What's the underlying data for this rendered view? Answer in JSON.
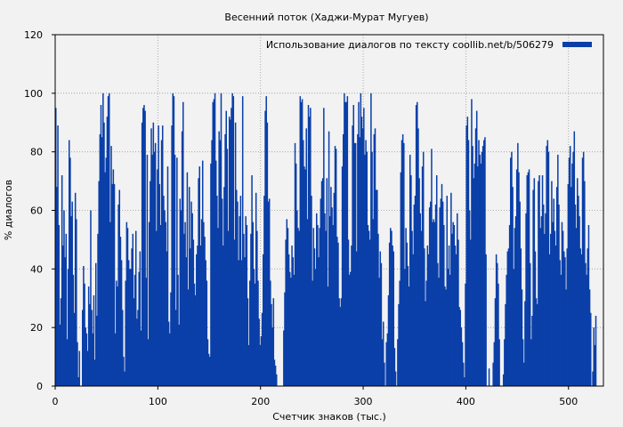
{
  "chart_data": {
    "type": "bar",
    "title": "Весенний поток (Хаджи-Мурат Мугуев)",
    "xlabel": "Счетчик знаков (тыс.)",
    "ylabel": "% диалогов",
    "legend_label": "Использование диалогов по тексту  coollib.net/b/506279",
    "legend_position": "top-right",
    "grid": true,
    "colors": {
      "bar": "#0a3fa8",
      "background": "#f2f2f2",
      "grid": "#999999"
    },
    "xlim": [
      0,
      534
    ],
    "ylim": [
      0,
      120
    ],
    "xticks": [
      0,
      100,
      200,
      300,
      400,
      500
    ],
    "yticks": [
      0,
      20,
      40,
      60,
      80,
      100,
      120
    ],
    "bin_width": 1,
    "series": [
      {
        "values": [
          95,
          68,
          89,
          55,
          21,
          30,
          72,
          48,
          60,
          44,
          52,
          16,
          40,
          84,
          78,
          58,
          63,
          38,
          25,
          66,
          57,
          15,
          3,
          12,
          0,
          0,
          26,
          41,
          35,
          20,
          18,
          12,
          34,
          28,
          60,
          26,
          18,
          31,
          9,
          42,
          24,
          52,
          70,
          86,
          96,
          85,
          100,
          90,
          73,
          78,
          92,
          99,
          100,
          56,
          82,
          69,
          74,
          69,
          18,
          36,
          34,
          62,
          67,
          51,
          43,
          26,
          10,
          5,
          36,
          56,
          54,
          43,
          40,
          40,
          47,
          52,
          30,
          38,
          53,
          23,
          26,
          39,
          46,
          19,
          90,
          95,
          96,
          94,
          37,
          79,
          16,
          56,
          70,
          88,
          79,
          90,
          80,
          83,
          53,
          74,
          89,
          69,
          55,
          84,
          89,
          65,
          60,
          56,
          46,
          75,
          22,
          18,
          32,
          89,
          100,
          99,
          79,
          26,
          78,
          38,
          21,
          64,
          60,
          87,
          97,
          52,
          56,
          44,
          73,
          33,
          68,
          47,
          63,
          59,
          50,
          35,
          31,
          45,
          48,
          71,
          75,
          48,
          57,
          77,
          56,
          51,
          43,
          36,
          16,
          11,
          10,
          76,
          84,
          97,
          98,
          100,
          77,
          65,
          54,
          87,
          84,
          100,
          64,
          48,
          68,
          86,
          94,
          81,
          53,
          92,
          91,
          95,
          100,
          99,
          50,
          90,
          67,
          63,
          43,
          58,
          65,
          43,
          99,
          52,
          44,
          58,
          55,
          30,
          14,
          36,
          52,
          72,
          56,
          40,
          35,
          66,
          53,
          36,
          23,
          14,
          17,
          25,
          45,
          65,
          94,
          99,
          90,
          63,
          64,
          36,
          28,
          20,
          30,
          9,
          7,
          4,
          0,
          0,
          0,
          0,
          0,
          0,
          19,
          32,
          50,
          57,
          54,
          45,
          39,
          37,
          48,
          44,
          38,
          83,
          76,
          60,
          54,
          53,
          99,
          97,
          98,
          84,
          75,
          74,
          88,
          57,
          96,
          92,
          95,
          65,
          36,
          54,
          47,
          40,
          59,
          55,
          44,
          54,
          64,
          70,
          71,
          95,
          59,
          53,
          71,
          34,
          87,
          58,
          68,
          61,
          55,
          66,
          82,
          81,
          51,
          49,
          30,
          27,
          30,
          75,
          86,
          100,
          97,
          97,
          99,
          50,
          38,
          39,
          48,
          89,
          96,
          83,
          83,
          46,
          86,
          97,
          85,
          100,
          92,
          88,
          95,
          79,
          84,
          80,
          55,
          53,
          50,
          100,
          80,
          57,
          86,
          88,
          67,
          67,
          52,
          37,
          46,
          42,
          16,
          22,
          8,
          0,
          15,
          18,
          31,
          49,
          54,
          53,
          48,
          46,
          13,
          5,
          0,
          16,
          28,
          36,
          73,
          84,
          86,
          83,
          40,
          54,
          49,
          41,
          34,
          79,
          72,
          53,
          45,
          62,
          65,
          96,
          97,
          88,
          71,
          59,
          53,
          75,
          80,
          47,
          29,
          36,
          48,
          45,
          61,
          63,
          81,
          56,
          57,
          56,
          62,
          72,
          42,
          37,
          61,
          64,
          69,
          63,
          55,
          34,
          33,
          65,
          40,
          48,
          38,
          66,
          52,
          56,
          55,
          48,
          45,
          59,
          50,
          27,
          26,
          20,
          15,
          8,
          3,
          35,
          89,
          92,
          84,
          60,
          50,
          98,
          82,
          71,
          76,
          88,
          94,
          75,
          84,
          79,
          76,
          80,
          82,
          84,
          85,
          45,
          0,
          0,
          6,
          0,
          0,
          0,
          8,
          15,
          30,
          45,
          42,
          35,
          16,
          0,
          0,
          0,
          4,
          16,
          28,
          38,
          46,
          47,
          55,
          78,
          80,
          68,
          40,
          54,
          58,
          74,
          83,
          73,
          63,
          47,
          33,
          16,
          8,
          29,
          59,
          72,
          73,
          74,
          42,
          16,
          24,
          67,
          71,
          46,
          30,
          28,
          70,
          72,
          54,
          58,
          72,
          62,
          52,
          59,
          82,
          84,
          80,
          45,
          52,
          70,
          56,
          64,
          53,
          48,
          68,
          79,
          62,
          43,
          38,
          56,
          53,
          46,
          44,
          33,
          47,
          69,
          78,
          82,
          68,
          76,
          80,
          87,
          62,
          54,
          71,
          65,
          58,
          47,
          45,
          78,
          80,
          70,
          42,
          38,
          47,
          55,
          33,
          25,
          0,
          5,
          20,
          14,
          24
        ]
      }
    ]
  }
}
